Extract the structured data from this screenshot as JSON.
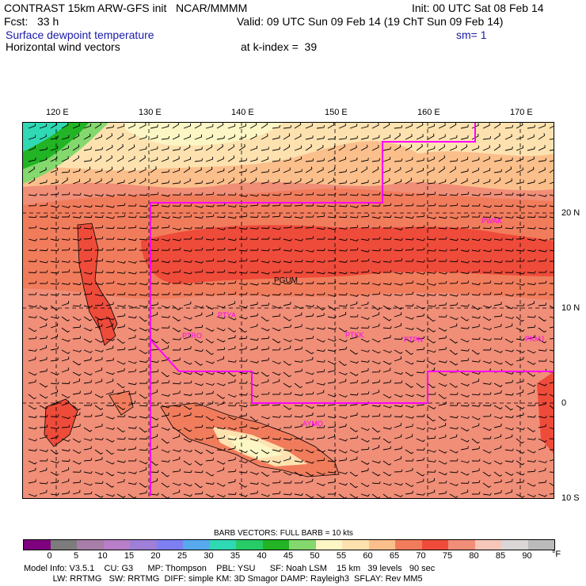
{
  "header": {
    "line1_left": "CONTRAST 15km ARW-GFS init   NCAR/MMMM",
    "line1_right": "Init: 00 UTC Sat 08 Feb 14",
    "line2_left": "Fcst:   33 h",
    "line2_right": "Valid: 09 UTC Sun 09 Feb 14 (19 ChT Sun 09 Feb 14)",
    "line3_left": "Surface dewpoint temperature",
    "line3_right": "sm= 1",
    "line4_left": "Horizontal wind vectors",
    "line4_mid": "at k-index =  39"
  },
  "map": {
    "lon_labels": [
      "120 E",
      "130 E",
      "140 E",
      "150 E",
      "160 E",
      "170 E"
    ],
    "lat_labels": [
      "20 N",
      "10 N",
      "0",
      "10 S"
    ],
    "stations": [
      "PGUM",
      "PTYA",
      "PTRO",
      "PTKK",
      "PTPN",
      "PKMJ",
      "PWAK",
      "AYMO"
    ]
  },
  "barb_title": "BARB VECTORS:  FULL BARB = 10 kts",
  "colorbar": {
    "labels": [
      "0",
      "5",
      "10",
      "15",
      "20",
      "25",
      "30",
      "35",
      "40",
      "45",
      "50",
      "55",
      "60",
      "65",
      "70",
      "75",
      "80",
      "85",
      "90"
    ],
    "unit": "°F",
    "colors": [
      "#7e007e",
      "#7c7c7c",
      "#a77ea8",
      "#b87ec7",
      "#9f7fd8",
      "#7e7ff2",
      "#57a9ee",
      "#2fd9b4",
      "#27cc66",
      "#22b424",
      "#84d86e",
      "#fbf6c4",
      "#fde2b0",
      "#fbbf8c",
      "#f17c5c",
      "#ef4b3a",
      "#f08e78",
      "#f7c7b9",
      "#dad6d6",
      "#bbbbbb"
    ]
  },
  "footer": {
    "line1": "Model Info: V3.5.1    CU: G3      MP: Thompson    PBL: YSU      SF: Noah LSM    15 km   39 levels   90 sec",
    "line2": "            LW: RRTMG   SW: RRTMG  DIFF: simple KM: 3D Smagor DAMP: Rayleigh3  SFLAY: Rev MM5"
  }
}
